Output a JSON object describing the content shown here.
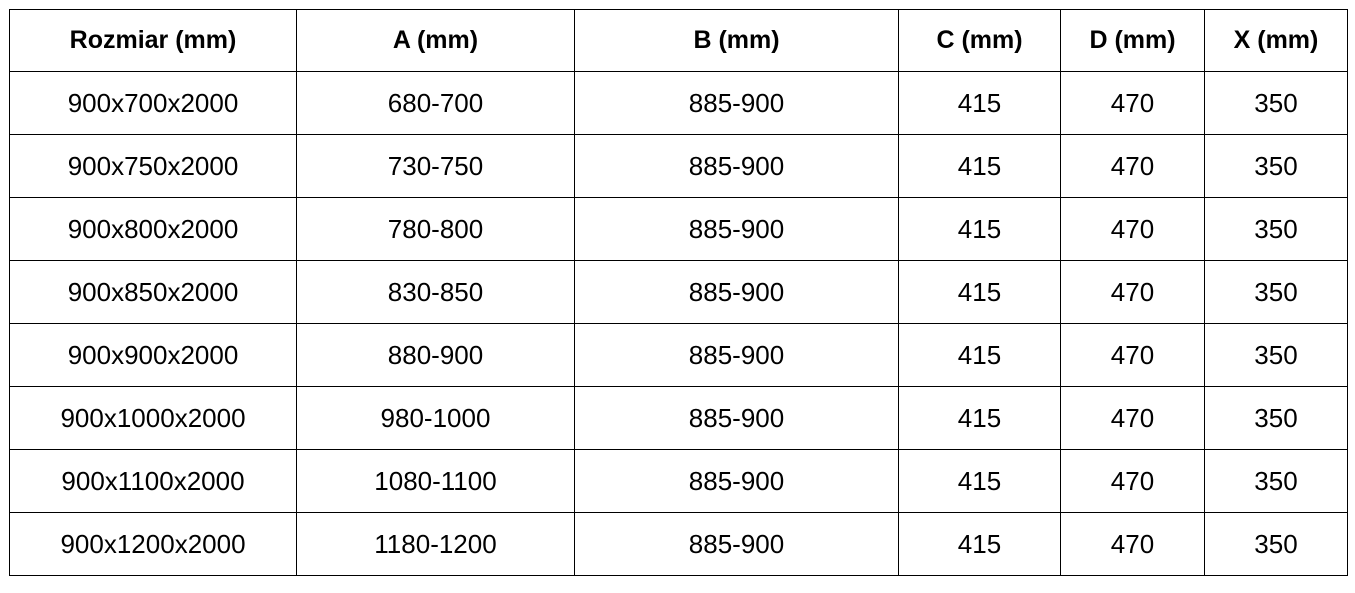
{
  "table": {
    "headers": [
      "Rozmiar (mm)",
      "A (mm)",
      "B (mm)",
      "C (mm)",
      "D (mm)",
      "X (mm)"
    ],
    "rows": [
      [
        "900x700x2000",
        "680-700",
        "885-900",
        "415",
        "470",
        "350"
      ],
      [
        "900x750x2000",
        "730-750",
        "885-900",
        "415",
        "470",
        "350"
      ],
      [
        "900x800x2000",
        "780-800",
        "885-900",
        "415",
        "470",
        "350"
      ],
      [
        "900x850x2000",
        "830-850",
        "885-900",
        "415",
        "470",
        "350"
      ],
      [
        "900x900x2000",
        "880-900",
        "885-900",
        "415",
        "470",
        "350"
      ],
      [
        "900x1000x2000",
        "980-1000",
        "885-900",
        "415",
        "470",
        "350"
      ],
      [
        "900x1100x2000",
        "1080-1100",
        "885-900",
        "415",
        "470",
        "350"
      ],
      [
        "900x1200x2000",
        "1180-1200",
        "885-900",
        "415",
        "470",
        "350"
      ]
    ]
  }
}
